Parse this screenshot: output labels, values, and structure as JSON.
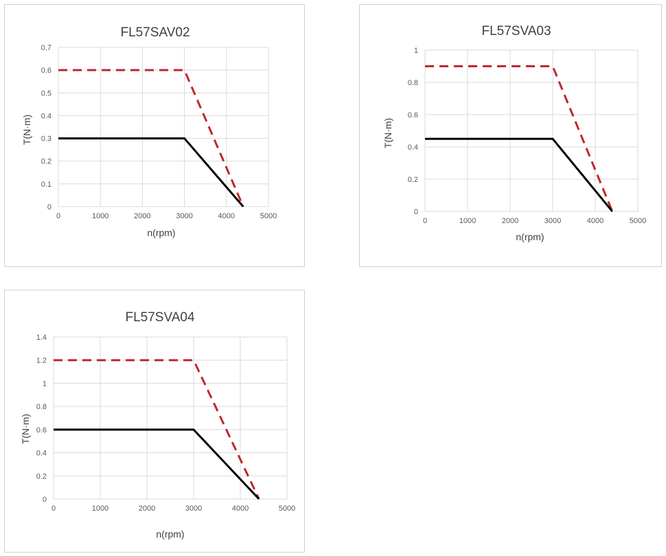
{
  "chart_data": [
    {
      "type": "line",
      "title": "FL57SAV02",
      "xlabel": "n(rpm)",
      "ylabel": "T(N·m)",
      "xlim": [
        0,
        5000
      ],
      "ylim": [
        0,
        0.7
      ],
      "x_ticks": [
        "0",
        "1000",
        "2000",
        "3000",
        "4000",
        "5000"
      ],
      "y_ticks": [
        "0",
        "0.1",
        "0.2",
        "0.3",
        "0.4",
        "0.5",
        "0.6",
        "0.7"
      ],
      "grid": true,
      "legend": "none",
      "series": [
        {
          "color": "#c0272d",
          "dash": "dashed",
          "x": [
            0,
            3000,
            4400
          ],
          "y": [
            0.6,
            0.6,
            0
          ]
        },
        {
          "color": "#000000",
          "dash": "solid",
          "x": [
            0,
            3000,
            4400
          ],
          "y": [
            0.3,
            0.3,
            0
          ]
        }
      ]
    },
    {
      "type": "line",
      "title": "FL57SVA03",
      "xlabel": "n(rpm)",
      "ylabel": "T(N·m)",
      "xlim": [
        0,
        5000
      ],
      "ylim": [
        0,
        1
      ],
      "x_ticks": [
        "0",
        "1000",
        "2000",
        "3000",
        "4000",
        "5000"
      ],
      "y_ticks": [
        "0",
        "0.2",
        "0.4",
        "0.6",
        "0.8",
        "1"
      ],
      "grid": true,
      "legend": "none",
      "series": [
        {
          "color": "#c0272d",
          "dash": "dashed",
          "x": [
            0,
            3000,
            4400
          ],
          "y": [
            0.9,
            0.9,
            0
          ]
        },
        {
          "color": "#000000",
          "dash": "solid",
          "x": [
            0,
            3000,
            4400
          ],
          "y": [
            0.45,
            0.45,
            0
          ]
        }
      ]
    },
    {
      "type": "line",
      "title": "FL57SVA04",
      "xlabel": "n(rpm)",
      "ylabel": "T(N·m)",
      "xlim": [
        0,
        5000
      ],
      "ylim": [
        0,
        1.4
      ],
      "x_ticks": [
        "0",
        "1000",
        "2000",
        "3000",
        "4000",
        "5000"
      ],
      "y_ticks": [
        "0",
        "0.2",
        "0.4",
        "0.6",
        "0.8",
        "1",
        "1.2",
        "1.4"
      ],
      "grid": true,
      "legend": "none",
      "series": [
        {
          "color": "#c0272d",
          "dash": "dashed",
          "x": [
            0,
            3000,
            4400
          ],
          "y": [
            1.2,
            1.2,
            0
          ]
        },
        {
          "color": "#000000",
          "dash": "solid",
          "x": [
            0,
            3000,
            4400
          ],
          "y": [
            0.6,
            0.6,
            0
          ]
        }
      ]
    }
  ]
}
